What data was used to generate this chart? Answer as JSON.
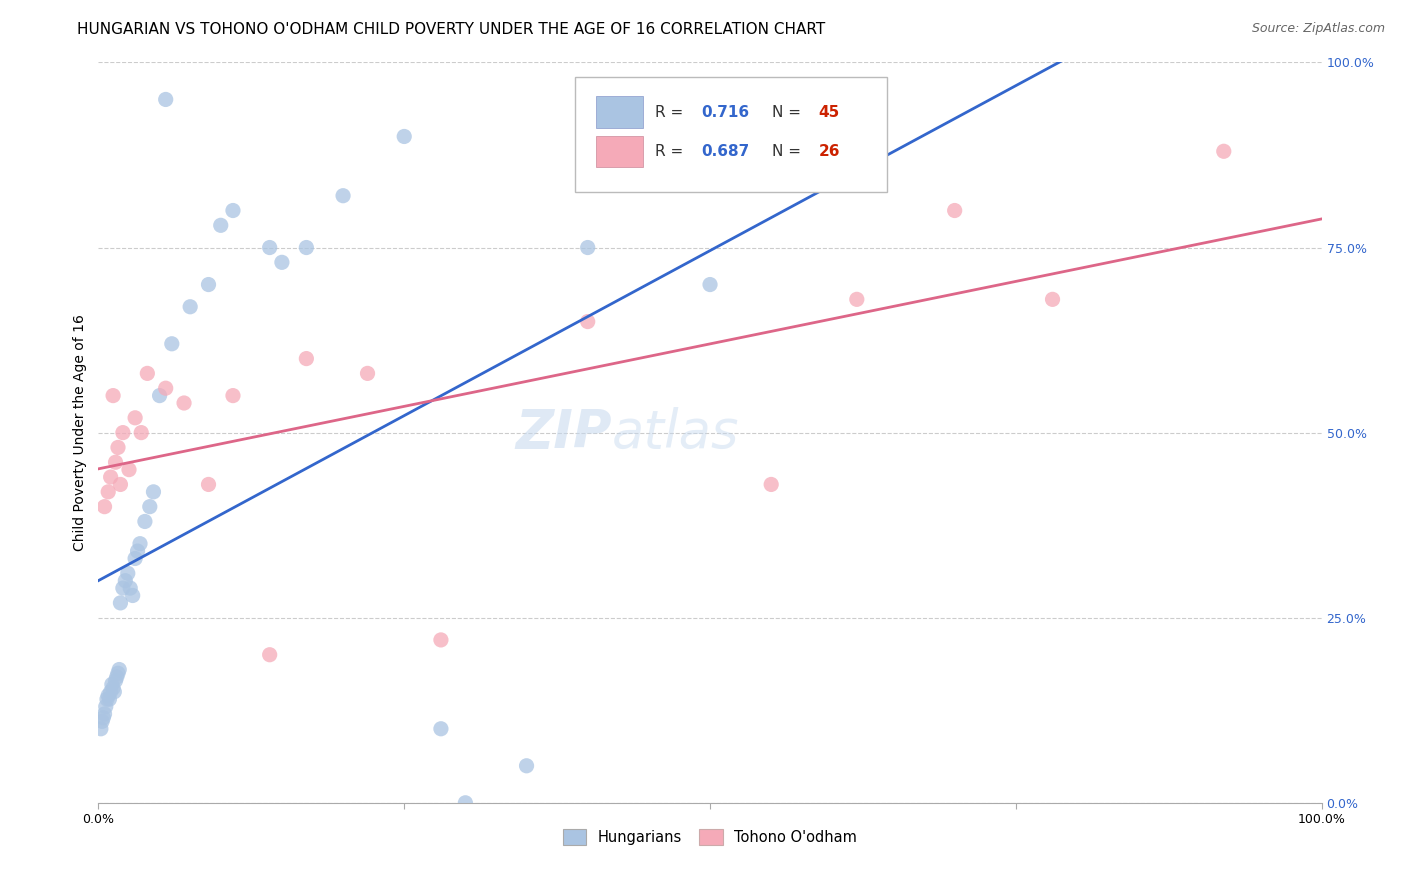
{
  "title": "HUNGARIAN VS TOHONO O'ODHAM CHILD POVERTY UNDER THE AGE OF 16 CORRELATION CHART",
  "source": "Source: ZipAtlas.com",
  "ylabel": "Child Poverty Under the Age of 16",
  "ytick_labels": [
    "0.0%",
    "25.0%",
    "50.0%",
    "75.0%",
    "100.0%"
  ],
  "ytick_values": [
    0,
    25,
    50,
    75,
    100
  ],
  "xlim": [
    0,
    100
  ],
  "ylim": [
    0,
    100
  ],
  "hungarian_R": 0.716,
  "hungarian_N": 45,
  "tohono_R": 0.687,
  "tohono_N": 26,
  "hungarian_color": "#aac4e2",
  "tohono_color": "#f5aab8",
  "hungarian_line_color": "#3366cc",
  "tohono_line_color": "#dd6688",
  "watermark_zip": "ZIP",
  "watermark_atlas": "atlas",
  "hungarian_x": [
    0.2,
    0.3,
    0.4,
    0.5,
    0.6,
    0.7,
    0.8,
    0.9,
    1.0,
    1.1,
    1.2,
    1.3,
    1.4,
    1.5,
    1.6,
    1.7,
    1.8,
    2.0,
    2.2,
    2.4,
    2.6,
    2.8,
    3.0,
    3.2,
    3.4,
    3.8,
    4.2,
    4.5,
    5.0,
    6.0,
    7.5,
    9.0,
    10.0,
    11.0,
    14.0,
    15.0,
    17.0,
    20.0,
    25.0,
    28.0,
    30.0,
    35.0,
    40.0,
    50.0,
    5.5
  ],
  "hungarian_y": [
    10.0,
    11.0,
    11.5,
    12.0,
    13.0,
    14.0,
    14.5,
    14.0,
    15.0,
    16.0,
    15.5,
    15.0,
    16.5,
    17.0,
    17.5,
    18.0,
    27.0,
    29.0,
    30.0,
    31.0,
    29.0,
    28.0,
    33.0,
    34.0,
    35.0,
    38.0,
    40.0,
    42.0,
    55.0,
    62.0,
    67.0,
    70.0,
    78.0,
    80.0,
    75.0,
    73.0,
    75.0,
    82.0,
    90.0,
    10.0,
    0.0,
    5.0,
    75.0,
    70.0,
    95.0
  ],
  "tohono_x": [
    0.5,
    0.8,
    1.0,
    1.2,
    1.4,
    1.6,
    1.8,
    2.0,
    2.5,
    3.0,
    3.5,
    4.0,
    5.5,
    7.0,
    9.0,
    11.0,
    14.0,
    17.0,
    22.0,
    28.0,
    40.0,
    55.0,
    62.0,
    70.0,
    78.0,
    92.0
  ],
  "tohono_y": [
    40.0,
    42.0,
    44.0,
    55.0,
    46.0,
    48.0,
    43.0,
    50.0,
    45.0,
    52.0,
    50.0,
    58.0,
    56.0,
    54.0,
    43.0,
    55.0,
    20.0,
    60.0,
    58.0,
    22.0,
    65.0,
    43.0,
    68.0,
    80.0,
    68.0,
    88.0
  ],
  "legend_R_color": "#3366cc",
  "legend_N_color": "#cc2200",
  "title_fontsize": 11,
  "axis_label_fontsize": 10,
  "tick_fontsize": 9,
  "source_fontsize": 9
}
